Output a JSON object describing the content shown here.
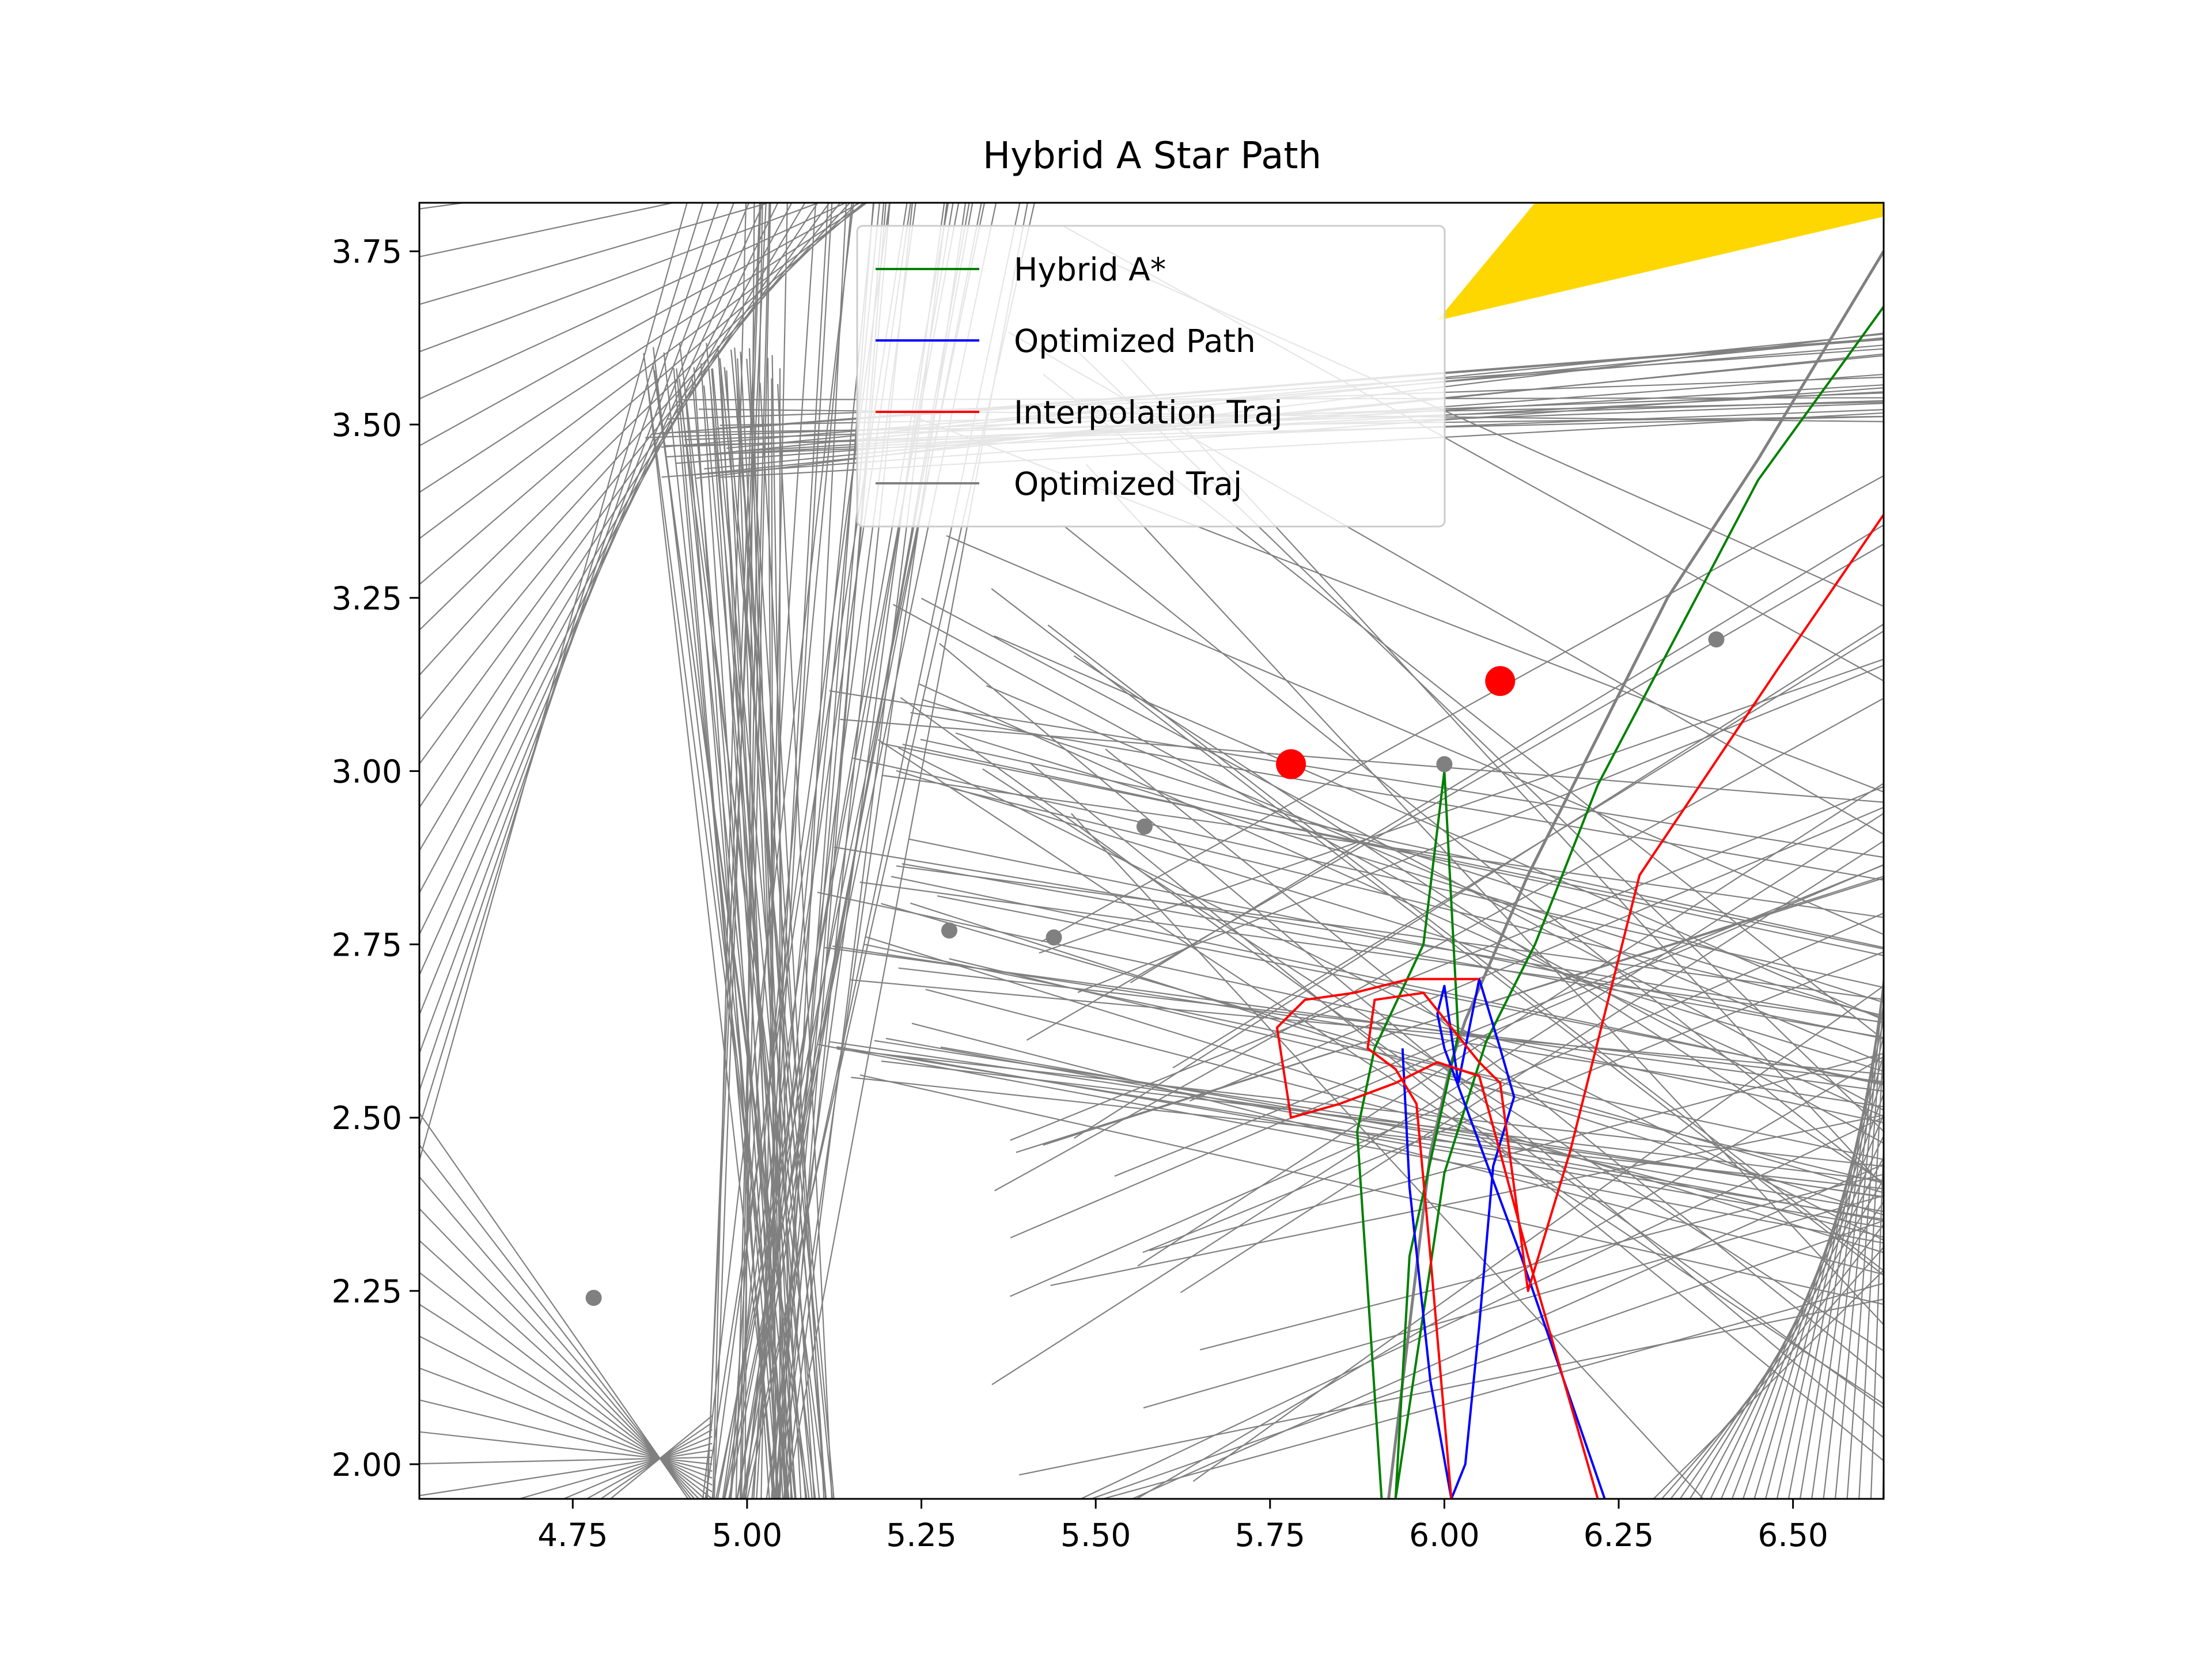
{
  "chart_data": {
    "type": "line",
    "title": "Hybrid A Star Path",
    "xlabel": "",
    "ylabel": "",
    "xlim": [
      4.53,
      6.63
    ],
    "ylim": [
      1.95,
      3.82
    ],
    "xticks": [
      4.75,
      5.0,
      5.25,
      5.5,
      5.75,
      6.0,
      6.25,
      6.5
    ],
    "xtick_labels": [
      "4.75",
      "5.00",
      "5.25",
      "5.50",
      "5.75",
      "6.00",
      "6.25",
      "6.50"
    ],
    "yticks": [
      2.0,
      2.25,
      2.5,
      2.75,
      3.0,
      3.25,
      3.5,
      3.75
    ],
    "ytick_labels": [
      "2.00",
      "2.25",
      "2.50",
      "2.75",
      "3.00",
      "3.25",
      "3.50",
      "3.75"
    ],
    "grid": false,
    "legend_position": "upper center",
    "series": [
      {
        "name": "Hybrid A*",
        "color": "#008000",
        "x": [
          5.91,
          5.875,
          5.9,
          5.97,
          6.0,
          6.02,
          5.95,
          5.93,
          6.0,
          6.06,
          6.13,
          6.22,
          6.45,
          6.63
        ],
        "y": [
          1.95,
          2.48,
          2.6,
          2.75,
          3.0,
          2.62,
          2.3,
          1.95,
          2.42,
          2.61,
          2.75,
          2.98,
          3.42,
          3.67
        ]
      },
      {
        "name": "Optimized Path",
        "color": "#0000ff",
        "x": [
          6.23,
          6.11,
          6.0,
          5.99,
          6.0,
          6.02,
          6.05,
          6.08,
          6.1,
          6.07,
          6.05,
          6.03,
          6.01,
          5.98,
          5.95,
          5.94
        ],
        "y": [
          1.95,
          2.3,
          2.6,
          2.65,
          2.69,
          2.55,
          2.7,
          2.6,
          2.53,
          2.43,
          2.2,
          2.0,
          1.95,
          2.12,
          2.4,
          2.6
        ]
      },
      {
        "name": "Interpolation Traj",
        "color": "#ff0000",
        "x": [
          6.01,
          5.98,
          5.96,
          5.93,
          5.89,
          5.9,
          5.97,
          6.05,
          6.08,
          6.1,
          6.12,
          6.18,
          6.28,
          6.48,
          6.63
        ],
        "y": [
          1.95,
          2.3,
          2.52,
          2.57,
          2.6,
          2.67,
          2.68,
          2.58,
          2.55,
          2.4,
          2.25,
          2.45,
          2.85,
          3.15,
          3.37
        ],
        "x2": [
          6.22,
          6.12,
          6.08,
          6.05,
          5.99,
          5.93,
          5.85,
          5.78,
          5.76,
          5.8,
          5.87,
          5.95,
          6.05
        ],
        "y2": [
          1.95,
          2.3,
          2.45,
          2.56,
          2.58,
          2.55,
          2.52,
          2.5,
          2.63,
          2.67,
          2.68,
          2.7,
          2.7
        ]
      },
      {
        "name": "Optimized Traj",
        "color": "#808080",
        "x": [
          5.92,
          5.95,
          5.98,
          6.01,
          6.03,
          6.06,
          6.12,
          6.22,
          6.32,
          6.45,
          6.63
        ],
        "y": [
          1.95,
          2.2,
          2.45,
          2.58,
          2.64,
          2.71,
          2.85,
          3.05,
          3.25,
          3.45,
          3.75
        ]
      }
    ],
    "markers": {
      "red": [
        {
          "x": 5.78,
          "y": 3.01
        },
        {
          "x": 6.08,
          "y": 3.13
        }
      ],
      "gray": [
        {
          "x": 4.78,
          "y": 2.24
        },
        {
          "x": 5.29,
          "y": 2.77
        },
        {
          "x": 5.44,
          "y": 2.76
        },
        {
          "x": 5.57,
          "y": 2.92
        },
        {
          "x": 6.0,
          "y": 3.01
        },
        {
          "x": 6.39,
          "y": 3.19
        }
      ]
    },
    "obstacle": {
      "color": "#ffd700",
      "polygon": [
        [
          5.99,
          3.65
        ],
        [
          6.13,
          3.82
        ],
        [
          6.63,
          3.82
        ],
        [
          6.63,
          3.8
        ]
      ]
    }
  }
}
